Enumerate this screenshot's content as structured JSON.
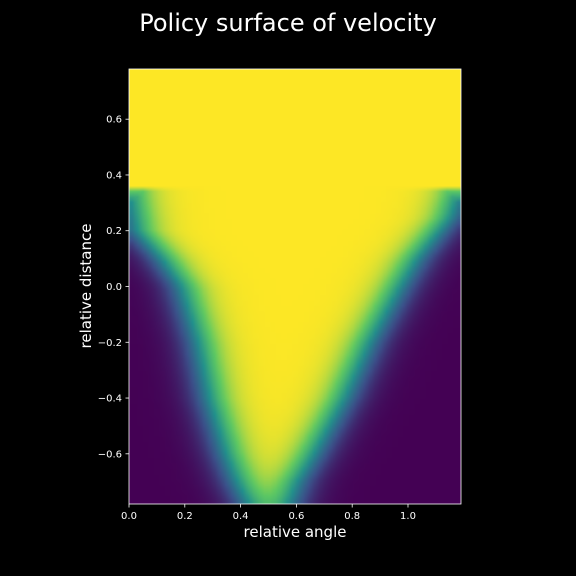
{
  "chart_data": {
    "type": "heatmap",
    "title": "Policy surface of velocity",
    "xlabel": "relative angle",
    "ylabel": "relative distance",
    "xlim": [
      0.0,
      1.19
    ],
    "ylim": [
      -0.78,
      0.78
    ],
    "x_ticks": [
      0.0,
      0.2,
      0.4,
      0.6,
      0.8,
      1.0
    ],
    "x_tick_labels": [
      "0.0",
      "0.2",
      "0.4",
      "0.6",
      "0.8",
      "1.0"
    ],
    "y_ticks": [
      0.6,
      0.4,
      0.2,
      0.0,
      -0.2,
      -0.4,
      -0.6
    ],
    "y_tick_labels": [
      "0.6",
      "0.4",
      "0.2",
      "0.0",
      "−0.2",
      "−0.4",
      "−0.6"
    ],
    "colormap": "viridis",
    "grid": false,
    "colorbar": false,
    "background": "#000000",
    "colors": {
      "low": "#440154",
      "mid": "#21918c",
      "high": "#fde725"
    },
    "left_boundary": [
      {
        "y": 0.36,
        "x": 0.0
      },
      {
        "y": 0.2,
        "x": 0.03
      },
      {
        "y": 0.1,
        "x": 0.12
      },
      {
        "y": 0.0,
        "x": 0.19
      },
      {
        "y": -0.2,
        "x": 0.25
      },
      {
        "y": -0.4,
        "x": 0.29
      },
      {
        "y": -0.6,
        "x": 0.35
      },
      {
        "y": -0.7,
        "x": 0.39
      },
      {
        "y": -0.78,
        "x": 0.43
      }
    ],
    "right_boundary": [
      {
        "y": 0.36,
        "x": 1.19
      },
      {
        "y": 0.25,
        "x": 1.15
      },
      {
        "y": 0.1,
        "x": 1.03
      },
      {
        "y": 0.0,
        "x": 0.97
      },
      {
        "y": -0.2,
        "x": 0.86
      },
      {
        "y": -0.4,
        "x": 0.77
      },
      {
        "y": -0.6,
        "x": 0.66
      },
      {
        "y": -0.7,
        "x": 0.6
      },
      {
        "y": -0.78,
        "x": 0.57
      }
    ]
  }
}
